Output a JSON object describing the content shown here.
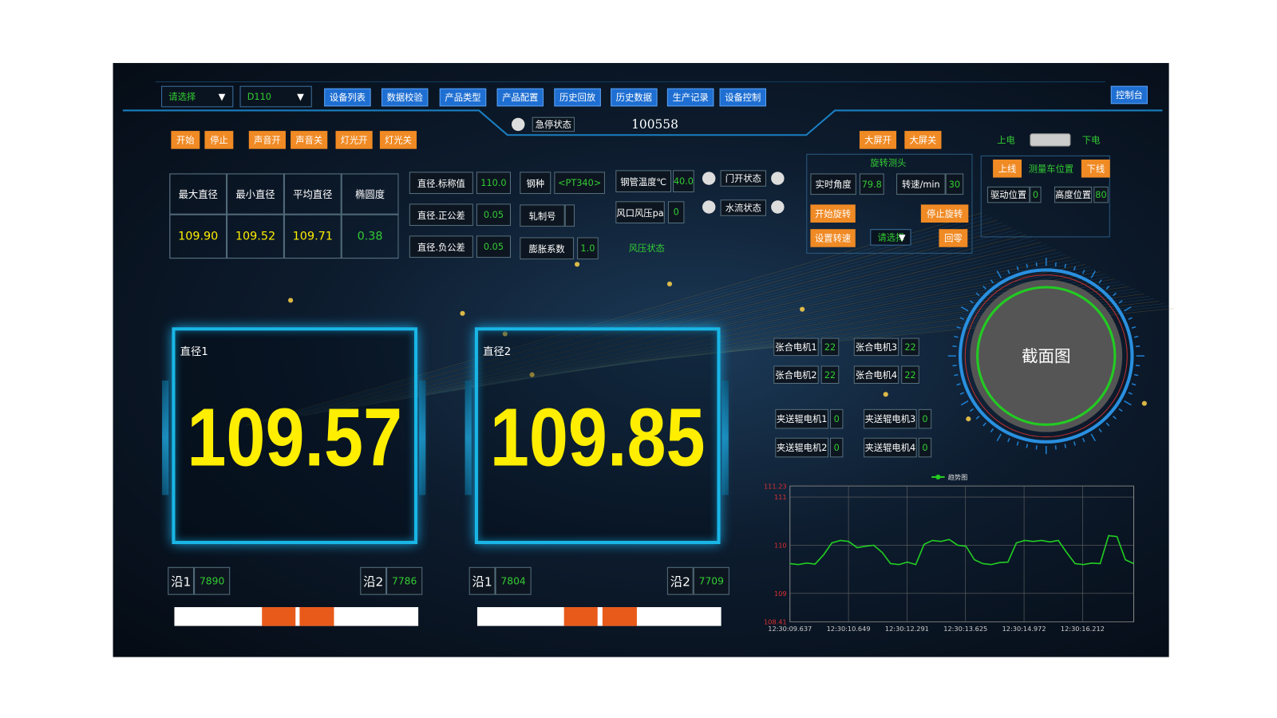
{
  "toolbar": {
    "selects": [
      {
        "text": "请选择",
        "arrow": "▼"
      },
      {
        "text": "D110",
        "arrow": "▼"
      }
    ],
    "nav": [
      "设备列表",
      "数据校验",
      "产品类型",
      "产品配置",
      "历史回放",
      "历史数据",
      "生产记录",
      "设备控制"
    ],
    "console": "控制台"
  },
  "status": {
    "estop": "急停状态",
    "counter": "100558"
  },
  "controls": [
    "开始",
    "停止",
    "声音开",
    "声音关",
    "灯光开",
    "灯光关"
  ],
  "screen": [
    "大屏开",
    "大屏关"
  ],
  "power": {
    "on": "上电",
    "off": "下电"
  },
  "summary": {
    "headers": [
      "最大直径",
      "最小直径",
      "平均直径",
      "椭圆度"
    ],
    "values": [
      "109.90",
      "109.52",
      "109.71",
      "0.38"
    ]
  },
  "params": [
    {
      "label": "直径.标称值",
      "value": "110.0"
    },
    {
      "label": "直径.正公差",
      "value": "0.05"
    },
    {
      "label": "直径.负公差",
      "value": "0.05"
    }
  ],
  "steel": {
    "label": "钢种",
    "value": "<PT340>"
  },
  "roll": {
    "label": "轧制号"
  },
  "expansion": {
    "label": "膨胀系数",
    "value": "1.0"
  },
  "temperature": {
    "label": "钢管温度℃",
    "value": "40.0"
  },
  "pressure": {
    "label": "风口风压pa",
    "value": "0"
  },
  "states": [
    "门开状态",
    "水流状态",
    "风压状态"
  ],
  "rotation": {
    "title": "旋转测头",
    "angle": {
      "label": "实时角度",
      "value": "79.8"
    },
    "speed": {
      "label": "转速/min",
      "value": "30"
    },
    "buttons": [
      "开始旋转",
      "停止旋转",
      "设置转速",
      "回零"
    ],
    "select": {
      "text": "请选择",
      "arrow": "▼"
    }
  },
  "cart": {
    "up": "上线",
    "title": "测量车位置",
    "down": "下线",
    "drive": {
      "label": "驱动位置",
      "value": "0"
    },
    "height": {
      "label": "高度位置",
      "value": "80"
    }
  },
  "gauges": [
    {
      "label": "直径1",
      "value": "109.57",
      "edges": [
        {
          "label": "沿1",
          "value": "7890"
        },
        {
          "label": "沿2",
          "value": "7786"
        }
      ]
    },
    {
      "label": "直径2",
      "value": "109.85",
      "edges": [
        {
          "label": "沿1",
          "value": "7804"
        },
        {
          "label": "沿2",
          "value": "7709"
        }
      ]
    }
  ],
  "motors": [
    {
      "label": "张合电机1",
      "value": "22"
    },
    {
      "label": "张合电机3",
      "value": "22"
    },
    {
      "label": "张合电机2",
      "value": "22"
    },
    {
      "label": "张合电机4",
      "value": "22"
    },
    {
      "label": "夹送辊电机1",
      "value": "0"
    },
    {
      "label": "夹送辊电机3",
      "value": "0"
    },
    {
      "label": "夹送辊电机2",
      "value": "0"
    },
    {
      "label": "夹送辊电机4",
      "value": "0"
    }
  ],
  "section": "截面图",
  "chart_data": {
    "type": "line",
    "series": [
      {
        "name": "趋势图",
        "color": "#22cc22",
        "values": [
          109.62,
          109.6,
          109.63,
          109.61,
          109.8,
          110.05,
          110.1,
          110.08,
          109.95,
          109.98,
          110.0,
          109.85,
          109.62,
          109.6,
          109.65,
          109.6,
          110.02,
          110.1,
          110.08,
          110.12,
          110.0,
          109.98,
          109.7,
          109.62,
          109.6,
          109.64,
          109.65,
          110.05,
          110.1,
          110.08,
          110.1,
          110.07,
          110.1,
          109.85,
          109.62,
          109.6,
          109.63,
          109.62,
          110.2,
          110.18,
          109.7,
          109.62
        ]
      }
    ],
    "ylim": [
      108.41,
      111.23
    ],
    "yticks": [
      108.41,
      109,
      110,
      111,
      111.23
    ],
    "x_labels": [
      "12:30:09.637",
      "12:30:10.649",
      "12:30:12.291",
      "12:30:13.625",
      "12:30:14.972",
      "12:30:16.212"
    ],
    "grid": true
  }
}
